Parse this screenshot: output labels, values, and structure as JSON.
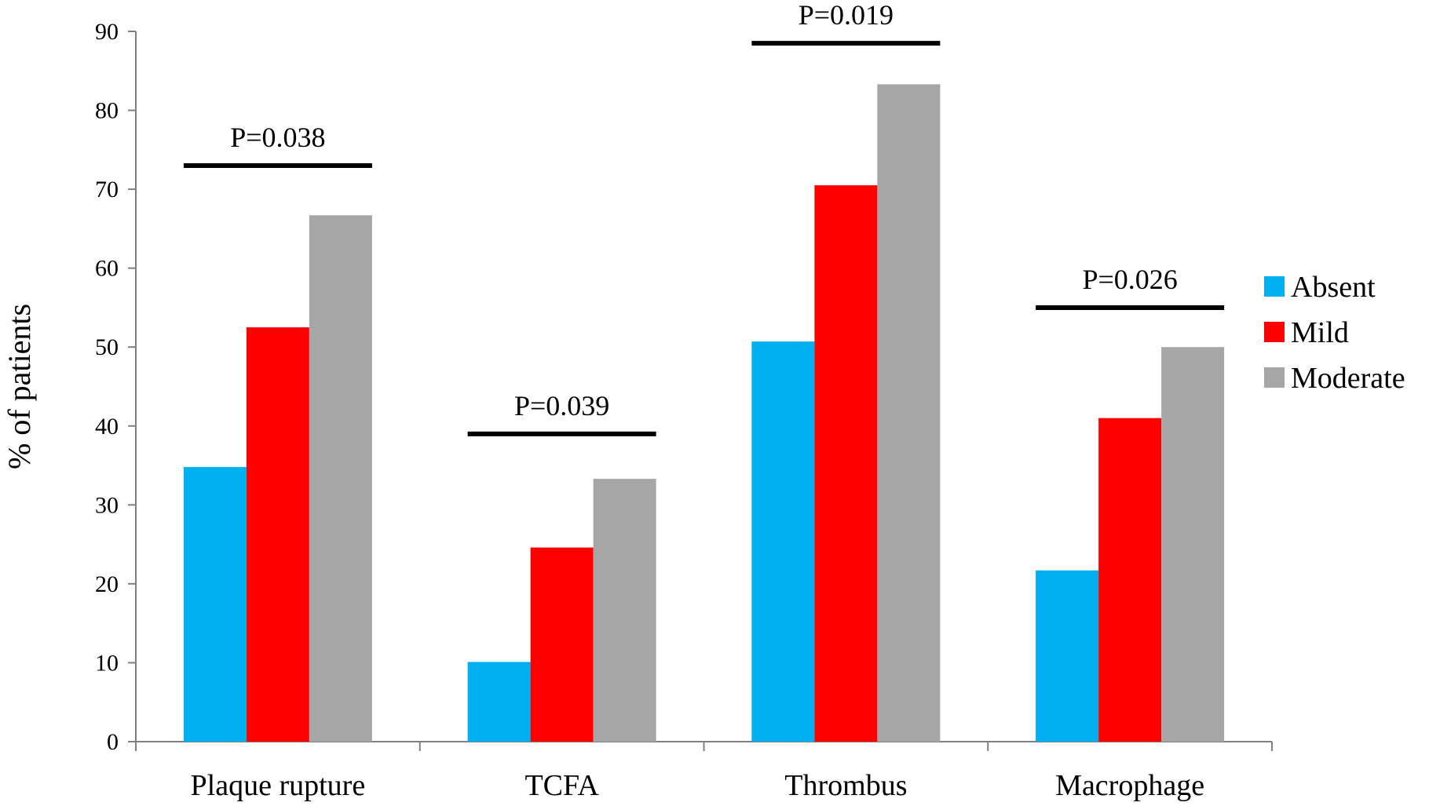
{
  "chart_data": {
    "type": "bar",
    "categories": [
      "Plaque rupture",
      "TCFA",
      "Thrombus",
      "Macrophage"
    ],
    "series": [
      {
        "name": "Absent",
        "color": "#00B0F0",
        "values": [
          34.8,
          10.1,
          50.7,
          21.7
        ]
      },
      {
        "name": "Mild",
        "color": "#FF0000",
        "values": [
          52.5,
          24.6,
          70.5,
          41.0
        ]
      },
      {
        "name": "Moderate",
        "color": "#A6A6A6",
        "values": [
          66.7,
          33.3,
          83.3,
          50.0
        ]
      }
    ],
    "ylabel": "% of patients",
    "xlabel": "",
    "ylim": [
      0,
      90
    ],
    "yticks": [
      0,
      10,
      20,
      30,
      40,
      50,
      60,
      70,
      80,
      90
    ],
    "grid": false,
    "legend_position": "right",
    "annotations": [
      {
        "category": "Plaque rupture",
        "text": "P=0.038",
        "level": 73
      },
      {
        "category": "TCFA",
        "text": "P=0.039",
        "level": 39
      },
      {
        "category": "Thrombus",
        "text": "P=0.019",
        "level": 88.5
      },
      {
        "category": "Macrophage",
        "text": "P=0.026",
        "level": 55
      }
    ]
  }
}
